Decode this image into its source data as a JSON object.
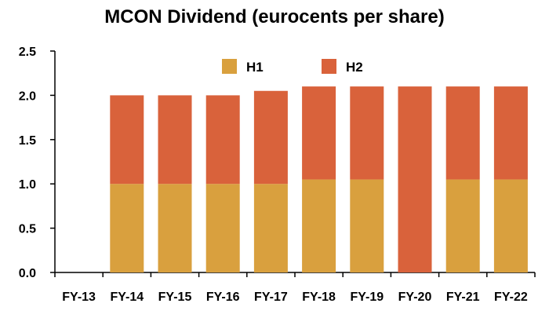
{
  "chart_data": {
    "type": "bar",
    "stacked": true,
    "title": "MCON Dividend (eurocents per share)",
    "xlabel": "",
    "ylabel": "",
    "categories": [
      "FY-13",
      "FY-14",
      "FY-15",
      "FY-16",
      "FY-17",
      "FY-18",
      "FY-19",
      "FY-20",
      "FY-21",
      "FY-22"
    ],
    "series": [
      {
        "name": "H1",
        "color": "#d9a03e",
        "values": [
          0,
          1.0,
          1.0,
          1.0,
          1.0,
          1.05,
          1.05,
          0,
          1.05,
          1.05
        ]
      },
      {
        "name": "H2",
        "color": "#d9623b",
        "values": [
          0,
          1.0,
          1.0,
          1.0,
          1.05,
          1.05,
          1.05,
          2.1,
          1.05,
          1.05
        ]
      }
    ],
    "ylim": [
      0,
      2.5
    ],
    "yticks": [
      "0.0",
      "0.5",
      "1.0",
      "1.5",
      "2.0",
      "2.5"
    ],
    "grid": false,
    "legend_position": "top-center"
  }
}
